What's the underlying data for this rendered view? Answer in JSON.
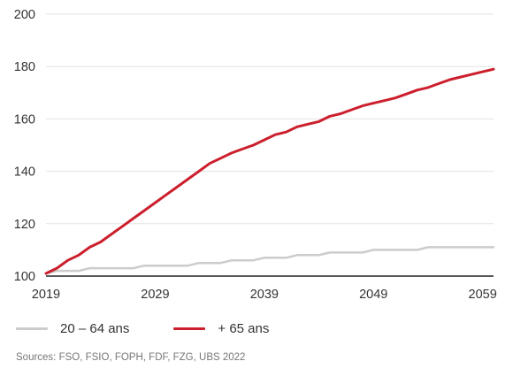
{
  "chart_data": {
    "type": "line",
    "title": "",
    "xlabel": "",
    "ylabel": "",
    "xlim": [
      2019,
      2060
    ],
    "ylim": [
      100,
      200
    ],
    "y_ticks": [
      100,
      120,
      140,
      160,
      180,
      200
    ],
    "x_ticks": [
      2019,
      2029,
      2039,
      2049,
      2059
    ],
    "grid": "horizontal",
    "legend_position": "bottom-left",
    "x": [
      2019,
      2020,
      2021,
      2022,
      2023,
      2024,
      2025,
      2026,
      2027,
      2028,
      2029,
      2030,
      2031,
      2032,
      2033,
      2034,
      2035,
      2036,
      2037,
      2038,
      2039,
      2040,
      2041,
      2042,
      2043,
      2044,
      2045,
      2046,
      2047,
      2048,
      2049,
      2050,
      2051,
      2052,
      2053,
      2054,
      2055,
      2056,
      2057,
      2058,
      2059,
      2060
    ],
    "series": [
      {
        "name": "20 – 64 ans",
        "color": "#cccccc",
        "values": [
          101,
          102,
          102,
          102,
          103,
          103,
          103,
          103,
          103,
          104,
          104,
          104,
          104,
          104,
          105,
          105,
          105,
          106,
          106,
          106,
          107,
          107,
          107,
          108,
          108,
          108,
          109,
          109,
          109,
          109,
          110,
          110,
          110,
          110,
          110,
          111,
          111,
          111,
          111,
          111,
          111,
          111
        ]
      },
      {
        "name": "+ 65 ans",
        "color": "#cc1f2d",
        "values": [
          101,
          103,
          106,
          108,
          111,
          113,
          116,
          119,
          122,
          125,
          128,
          131,
          134,
          137,
          140,
          143,
          145,
          147,
          148.5,
          150,
          152,
          154,
          155,
          157,
          158,
          159,
          161,
          162,
          163.5,
          165,
          166,
          167,
          168,
          169.5,
          171,
          172,
          173.5,
          175,
          176,
          177,
          178,
          179
        ]
      }
    ],
    "source": "Sources: FSO, FSIO, FOPH, FDF, FZG, UBS 2022"
  }
}
